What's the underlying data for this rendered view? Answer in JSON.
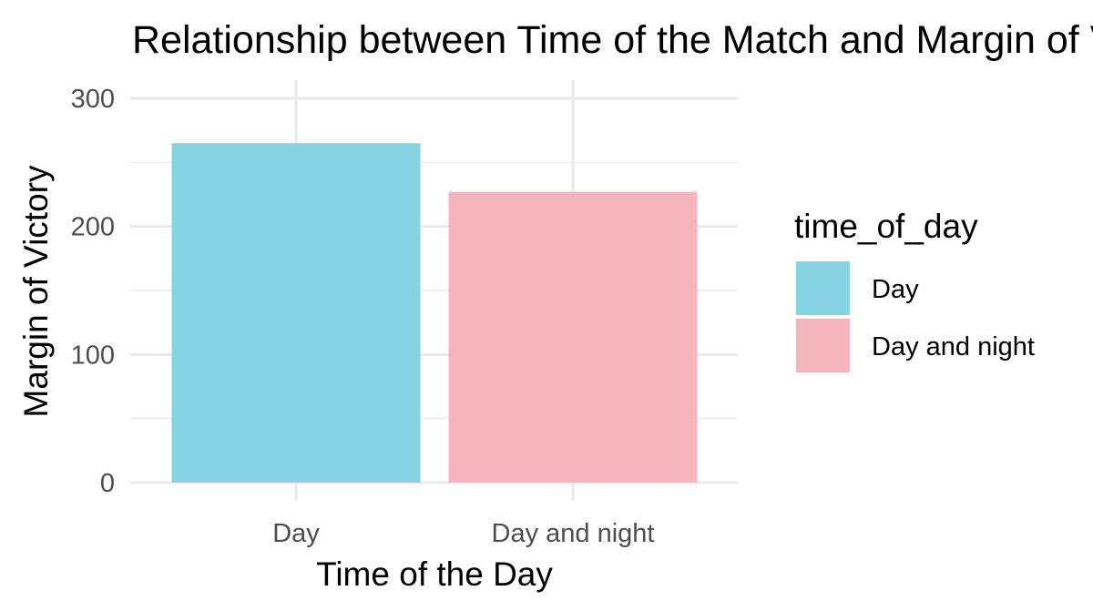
{
  "chart_data": {
    "type": "bar",
    "title": "Relationship between Time of the Match and Margin of Victory",
    "xlabel": "Time of the Day",
    "ylabel": "Margin of Victory",
    "categories": [
      "Day",
      "Day and night"
    ],
    "values": [
      265,
      227
    ],
    "ylim": [
      0,
      300
    ],
    "yticks": [
      0,
      100,
      200,
      300
    ],
    "grid": true,
    "legend": {
      "title": "time_of_day",
      "placement": "right",
      "entries": [
        "Day",
        "Day and night"
      ]
    },
    "colors": [
      "#87d3e3",
      "#f5b5bd"
    ]
  }
}
